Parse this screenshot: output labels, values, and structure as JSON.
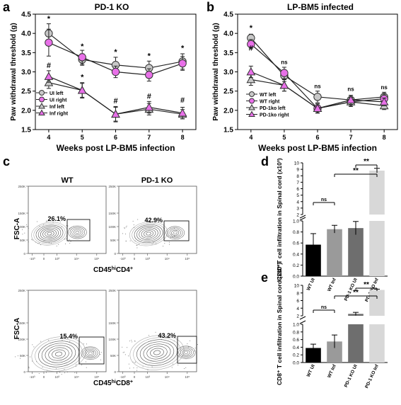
{
  "panels": {
    "a": {
      "letter": "a",
      "title": "PD-1 KO"
    },
    "b": {
      "letter": "b",
      "title": "LP-BM5 infected"
    },
    "c": {
      "letter": "c"
    },
    "d": {
      "letter": "d"
    },
    "e": {
      "letter": "e"
    }
  },
  "flow": {
    "col_titles": [
      "WT",
      "PD-1 KO"
    ],
    "y_label": "FSC-A",
    "top_x_label": "CD45hiCD4+",
    "bottom_x_label": "CD45hiCD8+",
    "y_ticks": [
      "250K",
      "150K",
      "100K",
      "50K",
      "0"
    ],
    "x_ticks": [
      "-10³",
      "0",
      "10³",
      "10⁴",
      "10⁵"
    ],
    "gates": [
      {
        "plot": "top-wt",
        "percent": "26.1%"
      },
      {
        "plot": "top-ko",
        "percent": "42.9%"
      },
      {
        "plot": "bottom-wt",
        "percent": "15.4%"
      },
      {
        "plot": "bottom-ko",
        "percent": "43.2%"
      }
    ]
  },
  "chart_data": [
    {
      "id": "a",
      "type": "line",
      "title": "PD-1 KO",
      "xlabel": "Weeks post LP-BM5 infection",
      "ylabel": "Paw withdrawal threshold (g)",
      "x": [
        4,
        5,
        6,
        7,
        8
      ],
      "ylim": [
        1.5,
        4.5
      ],
      "yticks": [
        "1.5",
        "2.0",
        "2.5",
        "3.0",
        "3.5",
        "4.0",
        "4.5"
      ],
      "series": [
        {
          "name": "UI left",
          "marker": "circle",
          "fill": "#c8c8c8",
          "values": [
            4.0,
            3.32,
            3.18,
            3.1,
            3.27
          ],
          "err": [
            0.25,
            0.15,
            0.2,
            0.18,
            0.2
          ]
        },
        {
          "name": "UI right",
          "marker": "circle",
          "fill": "#e870e8",
          "values": [
            3.76,
            3.38,
            3.0,
            2.92,
            3.22
          ],
          "err": [
            0.35,
            0.18,
            0.15,
            0.16,
            0.18
          ]
        },
        {
          "name": "Inf left",
          "marker": "triangle",
          "fill": "#c8c8c8",
          "values": [
            2.72,
            2.52,
            1.9,
            2.03,
            1.9
          ],
          "err": [
            0.15,
            0.18,
            0.2,
            0.15,
            0.12
          ]
        },
        {
          "name": "Inf right",
          "marker": "triangle",
          "fill": "#e870e8",
          "values": [
            2.88,
            2.52,
            1.9,
            2.08,
            1.93
          ],
          "err": [
            0.15,
            0.2,
            0.18,
            0.15,
            0.15
          ]
        }
      ],
      "annotations": [
        {
          "x": 4,
          "y": 4.32,
          "text": "*"
        },
        {
          "x": 5,
          "y": 3.6,
          "text": "*"
        },
        {
          "x": 6,
          "y": 3.45,
          "text": "*"
        },
        {
          "x": 7,
          "y": 3.35,
          "text": "*"
        },
        {
          "x": 8,
          "y": 3.55,
          "text": "*"
        },
        {
          "x": 4,
          "y": 3.1,
          "text": "#"
        },
        {
          "x": 5,
          "y": 2.8,
          "text": "*"
        },
        {
          "x": 6,
          "y": 2.18,
          "text": "#"
        },
        {
          "x": 7,
          "y": 2.3,
          "text": "#"
        },
        {
          "x": 8,
          "y": 2.2,
          "text": "#"
        }
      ]
    },
    {
      "id": "b",
      "type": "line",
      "title": "LP-BM5 infected",
      "xlabel": "Weeks post LP-BM5 infection",
      "ylabel": "Paw withdrawal threshold (g)",
      "x": [
        4,
        5,
        6,
        7,
        8
      ],
      "ylim": [
        1.5,
        4.5
      ],
      "yticks": [
        "1.5",
        "2.0",
        "2.5",
        "3.0",
        "3.5",
        "4.0",
        "4.5"
      ],
      "series": [
        {
          "name": "WT left",
          "marker": "circle",
          "fill": "#c8c8c8",
          "values": [
            3.88,
            2.9,
            2.35,
            2.27,
            2.35
          ],
          "err": [
            0.1,
            0.15,
            0.15,
            0.12,
            0.12
          ]
        },
        {
          "name": "WT right",
          "marker": "circle",
          "fill": "#e870e8",
          "values": [
            3.72,
            2.97,
            2.05,
            2.22,
            2.3
          ],
          "err": [
            0.12,
            0.15,
            0.12,
            0.12,
            0.12
          ]
        },
        {
          "name": "PD-1ko left",
          "marker": "triangle",
          "fill": "#c8c8c8",
          "values": [
            2.8,
            2.65,
            2.05,
            2.22,
            2.12
          ],
          "err": [
            0.15,
            0.15,
            0.12,
            0.12,
            0.1
          ]
        },
        {
          "name": "PD-1ko right",
          "marker": "triangle",
          "fill": "#e870e8",
          "values": [
            3.0,
            2.65,
            2.05,
            2.27,
            2.22
          ],
          "err": [
            0.15,
            0.15,
            0.12,
            0.12,
            0.1
          ]
        }
      ],
      "annotations": [
        {
          "x": 4,
          "y": 4.08,
          "text": "*"
        },
        {
          "x": 4,
          "y": 3.55,
          "text": "#"
        },
        {
          "x": 5,
          "y": 3.2,
          "text": "ns"
        },
        {
          "x": 6,
          "y": 2.58,
          "text": "ns"
        },
        {
          "x": 7,
          "y": 2.5,
          "text": "ns"
        },
        {
          "x": 8,
          "y": 2.55,
          "text": "ns"
        }
      ]
    },
    {
      "id": "d",
      "type": "bar",
      "ylabel": "CD4⁺ T cell infiltration in Spinal cord (x10³)",
      "categories": [
        "WT UI",
        "WT Inf",
        "PD-1 KO UI",
        "PD-1 KO Inf"
      ],
      "values": [
        0.57,
        0.85,
        0.87,
        8.8
      ],
      "err": [
        0.2,
        0.07,
        0.12,
        0.35
      ],
      "colors": [
        "#000000",
        "#9a9a9a",
        "#6e6e6e",
        "#d8d8d8"
      ],
      "yticks_low": [
        "0.0",
        "0.2",
        "0.4",
        "0.6",
        "0.8",
        "1.0"
      ],
      "yticks_high": [
        "2",
        "3",
        "4",
        "5",
        "6",
        "7",
        "8",
        "9",
        "10"
      ],
      "significance": [
        {
          "from": 0,
          "to": 1,
          "text": "ns"
        },
        {
          "from": 2,
          "to": 3,
          "text": "**"
        },
        {
          "from": 1,
          "to": 3,
          "text": "**"
        }
      ]
    },
    {
      "id": "e",
      "type": "bar",
      "ylabel": "CD8⁺ T cell infiltration in Spinal cord (x10³)",
      "categories": [
        "WT UI",
        "WT Inf",
        "PD-1 KO UI",
        "PD-1 KO Inf"
      ],
      "values": [
        0.38,
        0.55,
        2.5,
        8.8
      ],
      "err": [
        0.1,
        0.17,
        0.4,
        0.2
      ],
      "colors": [
        "#000000",
        "#9a9a9a",
        "#6e6e6e",
        "#d8d8d8"
      ],
      "yticks_low": [
        "0.0",
        "0.2",
        "0.4",
        "0.6",
        "0.8",
        "1.0"
      ],
      "yticks_high": [
        "2",
        "4",
        "6",
        "8",
        "10"
      ],
      "significance": [
        {
          "from": 0,
          "to": 1,
          "text": "ns"
        },
        {
          "from": 2,
          "to": 3,
          "text": "**"
        },
        {
          "from": 1,
          "to": 3,
          "text": "**"
        }
      ]
    }
  ]
}
